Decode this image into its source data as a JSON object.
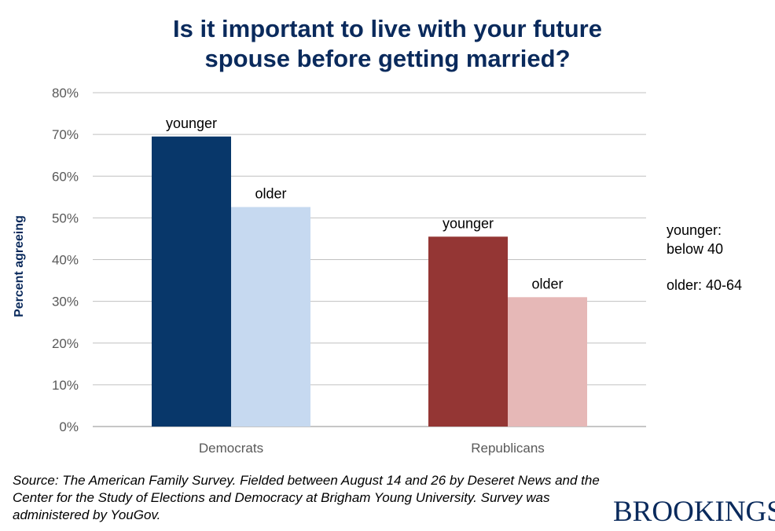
{
  "chart_data": {
    "type": "bar",
    "title": "Is it important to live with your future spouse before getting married?",
    "title_lines": [
      "Is it important to live with your future",
      "spouse before getting married?"
    ],
    "xlabel": "",
    "ylabel": "Percent agreeing",
    "ylim": [
      0,
      80
    ],
    "yticks": [
      "0%",
      "10%",
      "20%",
      "30%",
      "40%",
      "50%",
      "60%",
      "70%",
      "80%"
    ],
    "grid": true,
    "categories": [
      "Democrats",
      "Republicans"
    ],
    "bars": [
      {
        "category": "Democrats",
        "label": "younger",
        "value": 69.5,
        "color": "#08376a"
      },
      {
        "category": "Democrats",
        "label": "older",
        "value": 52.6,
        "color": "#c6d9f0"
      },
      {
        "category": "Republicans",
        "label": "younger",
        "value": 45.5,
        "color": "#943634"
      },
      {
        "category": "Republicans",
        "label": "older",
        "value": 31.0,
        "color": "#e6b8b7"
      }
    ]
  },
  "note": {
    "line1": "younger:",
    "line2": "below 40",
    "line3": "older: 40-64"
  },
  "source": "Source: The American Family Survey. Fielded between August 14 and 26 by Deseret News and the Center  for the Study of Elections and Democracy at Brigham Young University. Survey was administered by YouGov.",
  "logo": "BROOKINGS"
}
